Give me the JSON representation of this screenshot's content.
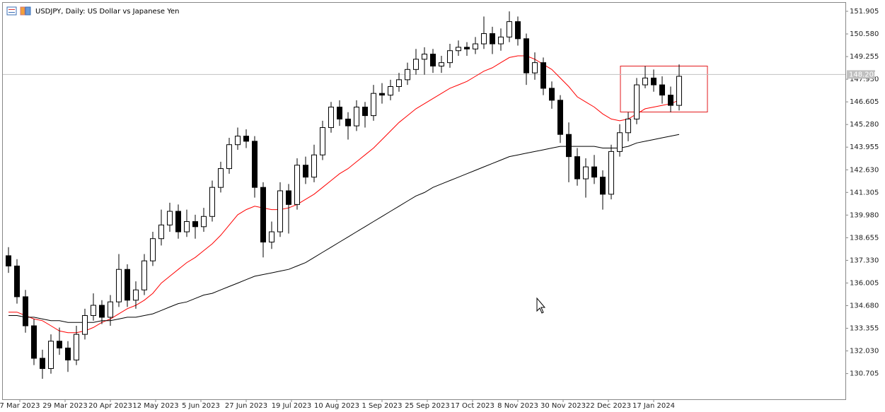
{
  "chart_data": {
    "type": "candlestick",
    "title": "USDJPY, Daily:  US Dollar vs Japanese Yen",
    "x": [
      2,
      5,
      8,
      11,
      14,
      17,
      20,
      23,
      26,
      29,
      32,
      35,
      38,
      41,
      44,
      47,
      50,
      53,
      56,
      59,
      62,
      65,
      68,
      71,
      74,
      77,
      80,
      83,
      86,
      89,
      92,
      95,
      98,
      101,
      104,
      107,
      110,
      113,
      116,
      119,
      122,
      125,
      128,
      131,
      134,
      137,
      140,
      143,
      146,
      149,
      152,
      155,
      158,
      161,
      164,
      167,
      170,
      173,
      176,
      179,
      182,
      185,
      188,
      191,
      194,
      197,
      200,
      203,
      206,
      209,
      212,
      215,
      218,
      221,
      224,
      227,
      230,
      233,
      236,
      239
    ],
    "open": [
      137.6,
      137.0,
      135.2,
      133.5,
      131.6,
      131.0,
      132.6,
      132.2,
      131.5,
      133.0,
      134.1,
      134.7,
      134.0,
      134.9,
      136.8,
      135.0,
      135.6,
      137.3,
      138.6,
      139.4,
      140.2,
      139.0,
      139.6,
      139.3,
      139.9,
      141.6,
      142.7,
      144.1,
      144.6,
      144.3,
      141.6,
      138.4,
      139.0,
      141.4,
      140.6,
      142.9,
      142.2,
      143.5,
      145.1,
      146.3,
      145.6,
      145.2,
      146.3,
      145.8,
      147.1,
      147.0,
      147.5,
      147.9,
      148.5,
      149.1,
      149.4,
      148.7,
      148.9,
      149.6,
      149.8,
      149.7,
      150.0,
      150.6,
      150.0,
      150.4,
      151.3,
      150.3,
      148.3,
      148.9,
      147.4,
      146.7,
      144.7,
      143.4,
      142.1,
      142.8,
      142.2,
      141.2,
      143.7,
      144.8,
      145.6,
      147.6,
      148.0,
      147.6,
      147.0,
      146.4
    ],
    "high": [
      138.1,
      137.4,
      135.6,
      133.9,
      132.1,
      133.0,
      133.4,
      132.6,
      133.5,
      134.5,
      135.4,
      135.0,
      135.3,
      137.7,
      137.1,
      136.1,
      137.7,
      139.0,
      140.3,
      140.7,
      140.6,
      140.3,
      140.0,
      140.4,
      142.0,
      143.1,
      144.5,
      145.1,
      145.0,
      144.6,
      141.9,
      139.6,
      141.9,
      141.8,
      143.3,
      143.4,
      144.1,
      145.5,
      146.6,
      146.7,
      146.0,
      146.7,
      146.6,
      147.6,
      147.7,
      147.9,
      148.3,
      148.9,
      149.7,
      149.8,
      149.7,
      149.3,
      150.0,
      150.2,
      150.1,
      150.4,
      151.6,
      151.0,
      150.9,
      151.9,
      151.6,
      150.6,
      149.5,
      149.2,
      147.8,
      147.0,
      145.4,
      143.9,
      143.3,
      143.5,
      142.6,
      144.1,
      145.3,
      146.0,
      148.0,
      148.7,
      148.5,
      148.1,
      147.5,
      148.8
    ],
    "low": [
      136.6,
      134.8,
      133.1,
      131.2,
      130.4,
      130.7,
      131.8,
      130.8,
      131.2,
      132.7,
      133.8,
      133.6,
      133.5,
      134.6,
      134.6,
      134.5,
      135.3,
      137.0,
      138.2,
      139.0,
      138.6,
      138.7,
      138.6,
      139.0,
      139.6,
      141.3,
      142.4,
      143.8,
      143.9,
      141.0,
      137.5,
      138.0,
      138.7,
      138.9,
      140.3,
      141.8,
      141.9,
      143.2,
      144.8,
      145.2,
      144.4,
      144.9,
      145.1,
      145.5,
      146.5,
      146.7,
      147.2,
      147.6,
      148.2,
      148.2,
      148.3,
      148.3,
      148.6,
      149.3,
      149.3,
      149.4,
      149.7,
      149.4,
      149.6,
      150.1,
      149.9,
      147.6,
      147.9,
      147.0,
      146.2,
      144.2,
      141.9,
      141.7,
      141.0,
      141.8,
      140.3,
      140.9,
      143.4,
      144.3,
      145.3,
      147.4,
      147.2,
      146.5,
      146.0,
      146.1
    ],
    "close": [
      137.0,
      135.2,
      133.5,
      131.6,
      131.0,
      132.6,
      132.2,
      131.5,
      133.0,
      134.1,
      134.7,
      134.0,
      134.9,
      136.8,
      135.0,
      135.6,
      137.3,
      138.6,
      139.4,
      140.2,
      139.0,
      139.6,
      139.3,
      139.9,
      141.6,
      142.7,
      144.1,
      144.6,
      144.3,
      141.6,
      138.4,
      139.0,
      141.4,
      140.6,
      142.9,
      142.2,
      143.5,
      145.1,
      146.3,
      145.6,
      145.2,
      146.3,
      145.8,
      147.1,
      147.0,
      147.5,
      147.9,
      148.5,
      149.1,
      149.4,
      148.7,
      148.9,
      149.6,
      149.8,
      149.7,
      150.0,
      150.6,
      150.0,
      150.4,
      151.3,
      150.3,
      148.3,
      148.9,
      147.4,
      146.7,
      144.7,
      143.4,
      142.1,
      142.8,
      142.2,
      141.2,
      143.7,
      144.8,
      145.6,
      147.6,
      148.0,
      147.6,
      147.0,
      146.4,
      148.1
    ],
    "series": [
      {
        "color": "#ff0000",
        "values": [
          134.3,
          134.3,
          134.1,
          133.9,
          133.8,
          133.5,
          133.2,
          133.1,
          133.1,
          133.2,
          133.4,
          133.7,
          133.9,
          134.2,
          134.5,
          134.7,
          135.0,
          135.4,
          136.0,
          136.4,
          136.8,
          137.2,
          137.5,
          137.9,
          138.3,
          138.8,
          139.4,
          140.0,
          140.3,
          140.5,
          140.4,
          140.3,
          140.3,
          140.4,
          140.6,
          140.9,
          141.2,
          141.6,
          142.0,
          142.4,
          142.7,
          143.1,
          143.5,
          143.9,
          144.4,
          144.9,
          145.4,
          145.8,
          146.2,
          146.5,
          146.8,
          147.1,
          147.4,
          147.6,
          147.8,
          148.1,
          148.4,
          148.6,
          148.9,
          149.2,
          149.3,
          149.3,
          149.1,
          148.8,
          148.5,
          148.0,
          147.5,
          146.9,
          146.6,
          146.3,
          145.9,
          145.6,
          145.5,
          145.6,
          145.9,
          146.2,
          146.3,
          146.4,
          146.5,
          146.7
        ]
      },
      {
        "color": "#000000",
        "values": [
          134.1,
          134.1,
          134.0,
          134.0,
          133.9,
          133.8,
          133.8,
          133.7,
          133.7,
          133.7,
          133.7,
          133.8,
          133.8,
          133.9,
          134.0,
          134.0,
          134.1,
          134.2,
          134.4,
          134.6,
          134.8,
          134.9,
          135.1,
          135.3,
          135.4,
          135.6,
          135.8,
          136.0,
          136.2,
          136.4,
          136.5,
          136.6,
          136.7,
          136.8,
          137.0,
          137.2,
          137.5,
          137.8,
          138.1,
          138.4,
          138.7,
          139.0,
          139.3,
          139.6,
          139.9,
          140.2,
          140.5,
          140.8,
          141.1,
          141.3,
          141.6,
          141.8,
          142.0,
          142.2,
          142.4,
          142.6,
          142.8,
          143.0,
          143.2,
          143.4,
          143.5,
          143.6,
          143.7,
          143.8,
          143.9,
          144.0,
          144.0,
          144.0,
          144.0,
          144.0,
          143.9,
          143.9,
          143.9,
          144.0,
          144.2,
          144.3,
          144.4,
          144.5,
          144.6,
          144.7
        ]
      }
    ],
    "bull_color": "#ffffff",
    "bear_color": "#000000",
    "outline_color": "#000000",
    "last_price": 148.208,
    "xlim": [
      -1,
      297.75
    ],
    "xticks": [
      {
        "value": 6,
        "label": "7 Mar 2023"
      },
      {
        "value": 22,
        "label": "29 Mar 2023"
      },
      {
        "value": 38,
        "label": "20 Apr 2023"
      },
      {
        "value": 54,
        "label": "12 May 2023"
      },
      {
        "value": 70,
        "label": "5 Jun 2023"
      },
      {
        "value": 86,
        "label": "27 Jun 2023"
      },
      {
        "value": 102,
        "label": "19 Jul 2023"
      },
      {
        "value": 118,
        "label": "10 Aug 2023"
      },
      {
        "value": 134,
        "label": "1 Sep 2023"
      },
      {
        "value": 150,
        "label": "25 Sep 2023"
      },
      {
        "value": 166,
        "label": "17 Oct 2023"
      },
      {
        "value": 182,
        "label": "8 Nov 2023"
      },
      {
        "value": 198,
        "label": "30 Nov 2023"
      },
      {
        "value": 214,
        "label": "22 Dec 2023"
      },
      {
        "value": 230,
        "label": "17 Jan 2024"
      }
    ],
    "ylim": [
      129.2,
      152.566
    ],
    "yticks": [
      151.905,
      {
        "value": 150.58,
        "label": "150.580"
      },
      149.255,
      {
        "value": 147.93,
        "label": "147.930"
      },
      146.605,
      {
        "value": 145.28,
        "label": "145.280"
      },
      143.955,
      {
        "value": 142.63,
        "label": "142.630"
      },
      141.305,
      {
        "value": 139.98,
        "label": "139.980"
      },
      138.655,
      {
        "value": 137.33,
        "label": "137.330"
      },
      136.005,
      {
        "value": 134.68,
        "label": "134.680"
      },
      133.355,
      {
        "value": 132.03,
        "label": "132.030"
      },
      130.705
    ]
  }
}
